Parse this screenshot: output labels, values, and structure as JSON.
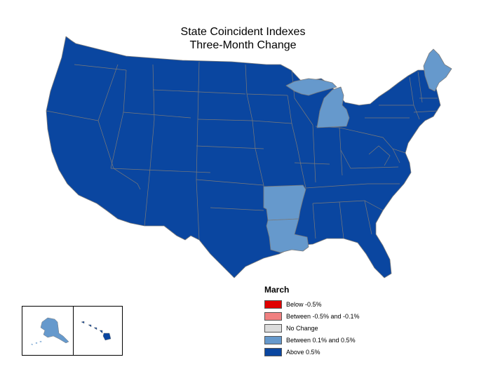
{
  "title": {
    "line1": "State Coincident Indexes",
    "line2": "Three-Month Change"
  },
  "legend": {
    "title": "March",
    "items": [
      {
        "label": "Below -0.5%",
        "color": "#e00000"
      },
      {
        "label": "Between -0.5% and -0.1%",
        "color": "#f08080"
      },
      {
        "label": "No Change",
        "color": "#dcdcdc"
      },
      {
        "label": "Between 0.1% and 0.5%",
        "color": "#6699cc"
      },
      {
        "label": "Above 0.5%",
        "color": "#0a46a0"
      }
    ]
  },
  "categories": {
    "between_0_1_and_0_5": [
      "Alaska",
      "Michigan",
      "Maine",
      "Arkansas",
      "Louisiana"
    ],
    "above_0_5": [
      "Hawaii",
      "all other states"
    ]
  }
}
